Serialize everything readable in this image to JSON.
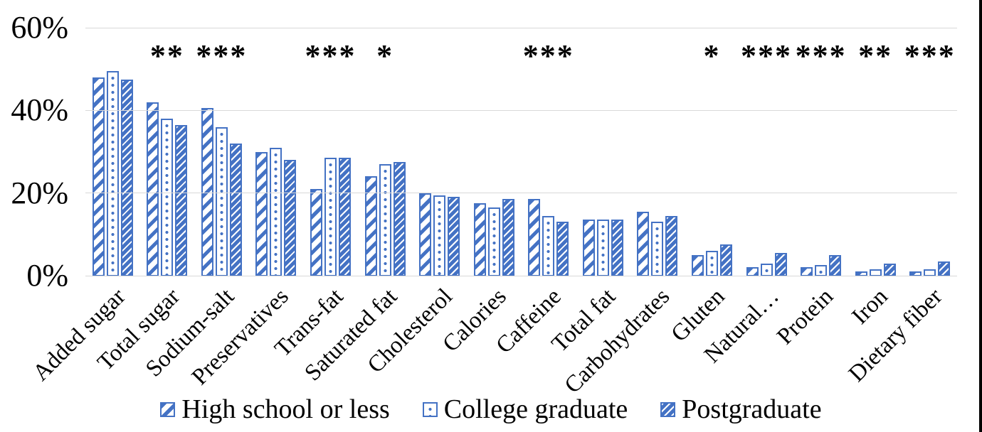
{
  "figure": {
    "background": "#FFFFFF",
    "right_border_color": "#000000",
    "bar_color": "#4472C4",
    "gridline_color": "#D9D9D9"
  },
  "chart_data": {
    "type": "bar",
    "title": "",
    "xlabel": "",
    "ylabel": "",
    "ylim": [
      0,
      60
    ],
    "grid": true,
    "legend_position": "bottom",
    "y_ticks": [
      {
        "label": "0%",
        "value": 0
      },
      {
        "label": "20%",
        "value": 20
      },
      {
        "label": "40%",
        "value": 40
      },
      {
        "label": "60%",
        "value": 60
      }
    ],
    "categories": [
      "Added sugar",
      "Total sugar",
      "Sodium-salt",
      "Preservatives",
      "Trans-fat",
      "Saturated fat",
      "Cholesterol",
      "Calories",
      "Caffeine",
      "Total fat",
      "Carbohydrates",
      "Gluten",
      "Natural…",
      "Protein",
      "Iron",
      "Dietary fiber"
    ],
    "significance": [
      "",
      "**",
      "***",
      "",
      "***",
      "*",
      "",
      "",
      "***",
      "",
      "",
      "*",
      "***",
      "***",
      "**",
      "***"
    ],
    "series": [
      {
        "name": "High school or less",
        "pattern": "wide-diagonal-stripes",
        "values": [
          48,
          42,
          40.5,
          30,
          21,
          24,
          20,
          17.5,
          18.5,
          13.5,
          15.5,
          5,
          2,
          2,
          1,
          1
        ]
      },
      {
        "name": "College graduate",
        "pattern": "dots",
        "values": [
          49.5,
          38,
          36,
          31,
          28.5,
          27,
          19.5,
          16.5,
          14.5,
          13.5,
          13,
          6,
          3,
          2.5,
          1.5,
          1.5
        ]
      },
      {
        "name": "Postgraduate",
        "pattern": "fine-diagonal-weave",
        "values": [
          47.5,
          36.5,
          32,
          28,
          28.5,
          27.5,
          19,
          18.5,
          13,
          13.5,
          14.5,
          7.5,
          5.5,
          5,
          3,
          3.5
        ]
      }
    ]
  }
}
